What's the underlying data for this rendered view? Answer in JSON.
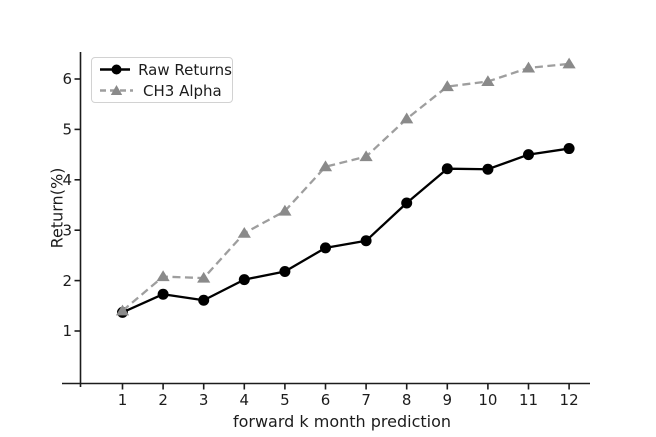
{
  "figure": {
    "background": "#ffffff",
    "text_color": "#1c1c1c",
    "spine_color": "#1c1c1c",
    "legend_border_color": "#d2d2d2"
  },
  "chart_data": {
    "type": "line",
    "title": "",
    "xlabel": "forward k month prediction",
    "ylabel": "Return(%)",
    "x": [
      1,
      2,
      3,
      4,
      5,
      6,
      7,
      8,
      9,
      10,
      11,
      12
    ],
    "xticks": [
      1,
      2,
      3,
      4,
      5,
      6,
      7,
      8,
      9,
      10,
      11,
      12
    ],
    "yticks": [
      1,
      2,
      3,
      4,
      5,
      6
    ],
    "xlim": [
      -0.5,
      12.55
    ],
    "ylim": [
      -0.1,
      6.55
    ],
    "grid": false,
    "legend_position": "upper-left",
    "series": [
      {
        "name": "Raw Returns",
        "color": "#000000",
        "marker_color": "#000000",
        "line_style": "solid",
        "marker": "circle",
        "values": [
          1.37,
          1.73,
          1.61,
          2.02,
          2.18,
          2.65,
          2.79,
          3.54,
          4.22,
          4.21,
          4.5,
          4.62
        ]
      },
      {
        "name": "CH3 Alpha",
        "color": "#9e9e9e",
        "marker_color": "#8a8a8a",
        "line_style": "dashed",
        "marker": "triangle",
        "values": [
          1.4,
          2.08,
          2.05,
          2.94,
          3.38,
          4.26,
          4.46,
          5.21,
          5.85,
          5.95,
          6.22,
          6.3
        ]
      }
    ]
  }
}
